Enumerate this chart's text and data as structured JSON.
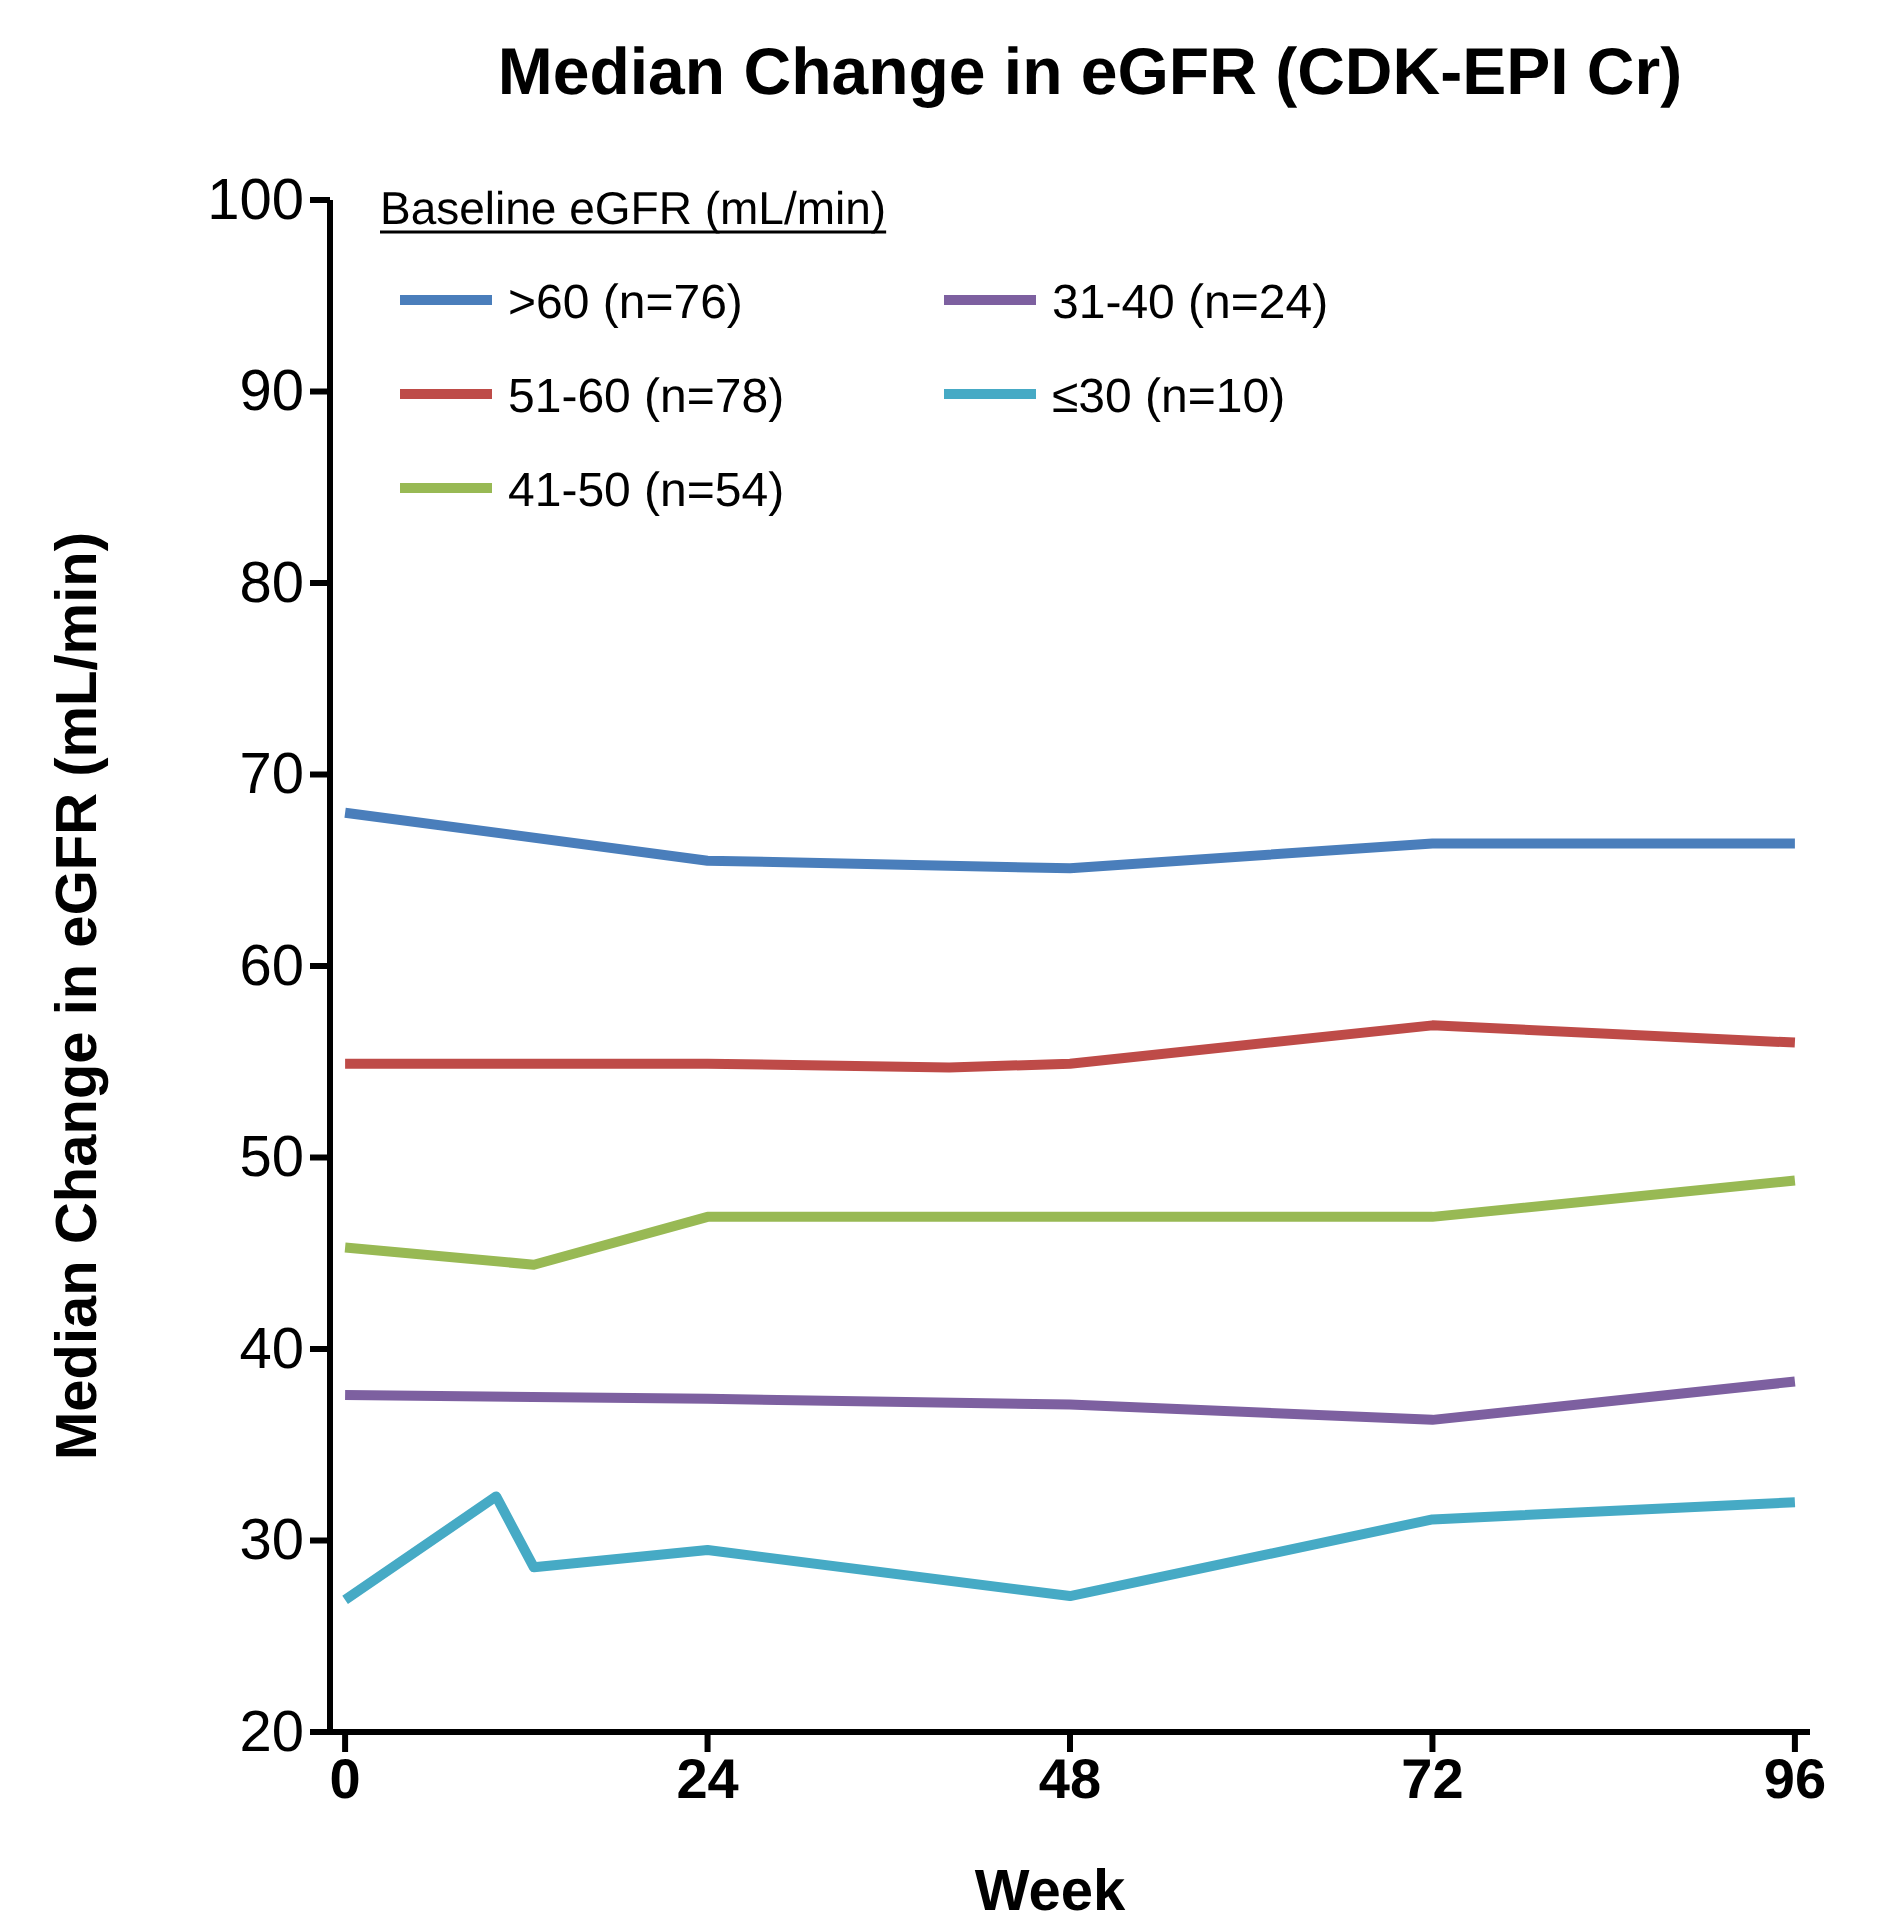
{
  "chart_data": {
    "type": "line",
    "title": "Median Change in eGFR (CDK-EPI Cr)",
    "xlabel": "Week",
    "ylabel": "Median Change in eGFR (mL/min)",
    "legend_title": "Baseline eGFR (mL/min)",
    "legend": "top left",
    "xlim": [
      -1,
      97
    ],
    "xticks": [
      0,
      24,
      48,
      72,
      96
    ],
    "ylim": [
      20,
      100
    ],
    "yticks": [
      20,
      30,
      40,
      50,
      60,
      70,
      80,
      90,
      100
    ],
    "grid": false,
    "marker": "none",
    "line_style": "solid",
    "series": [
      {
        "name": ">60 (n=76)",
        "color": "#4a7ebb",
        "x": [
          0,
          24,
          48,
          72,
          96
        ],
        "values": [
          68.0,
          65.5,
          65.1,
          66.4,
          66.4
        ]
      },
      {
        "name": "51-60 (n=78)",
        "color": "#be4b48",
        "x": [
          0,
          24,
          40,
          48,
          72,
          96
        ],
        "values": [
          54.9,
          54.9,
          54.7,
          54.9,
          56.9,
          56.0
        ]
      },
      {
        "name": "41-50 (n=54)",
        "color": "#98b954",
        "x": [
          0,
          12.5,
          24,
          48,
          72,
          96
        ],
        "values": [
          45.3,
          44.4,
          46.9,
          46.9,
          46.9,
          48.8
        ]
      },
      {
        "name": "31-40 (n=24)",
        "color": "#7d60a0",
        "x": [
          0,
          24,
          48,
          72,
          96
        ],
        "values": [
          37.6,
          37.4,
          37.1,
          36.3,
          38.3
        ]
      },
      {
        "name": "≤30 (n=10)",
        "color": "#46aac5",
        "x": [
          0,
          10,
          12.5,
          24,
          48,
          72,
          96
        ],
        "values": [
          26.9,
          32.3,
          28.6,
          29.5,
          27.1,
          31.1,
          32.0
        ]
      }
    ]
  }
}
